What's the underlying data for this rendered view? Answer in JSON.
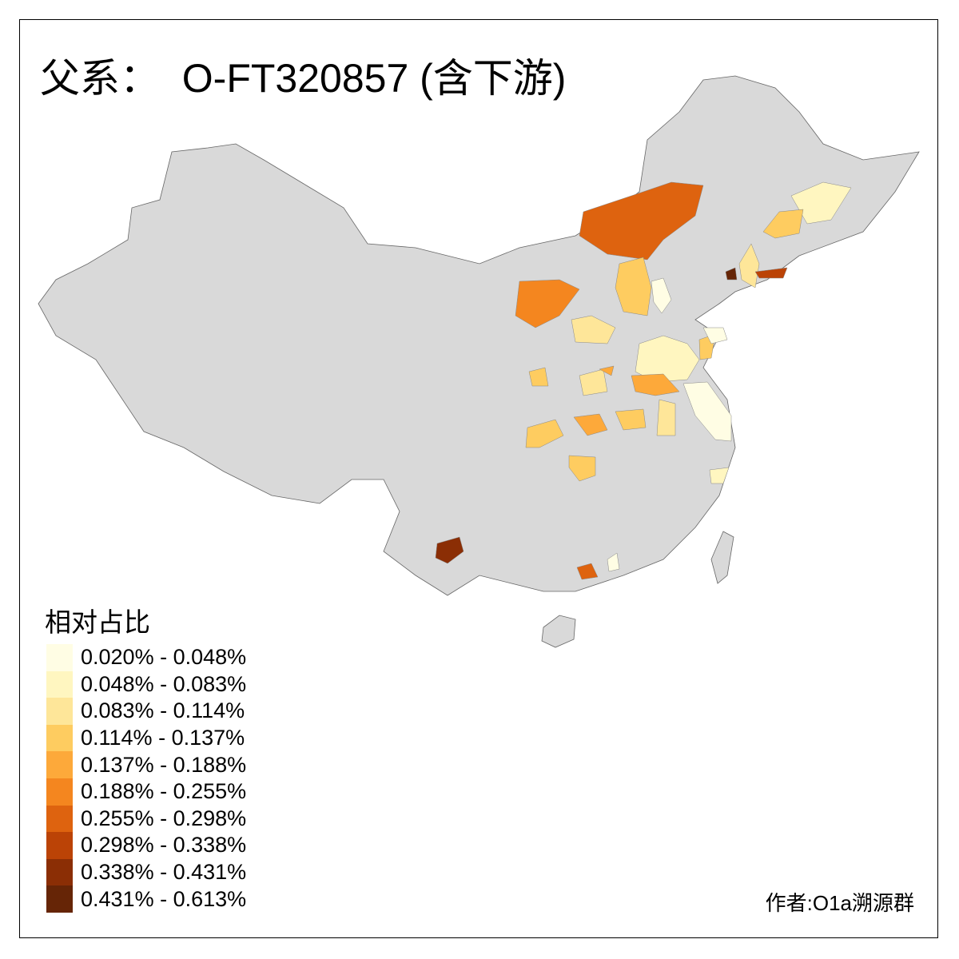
{
  "title": "父系：  O-FT320857 (含下游)",
  "legend": {
    "title": "相对占比",
    "items": [
      {
        "label": "0.020% - 0.048%",
        "color": "#FFFDE4"
      },
      {
        "label": "0.048% - 0.083%",
        "color": "#FFF6C0"
      },
      {
        "label": "0.083% - 0.114%",
        "color": "#FEE699"
      },
      {
        "label": "0.114% - 0.137%",
        "color": "#FECC60"
      },
      {
        "label": "0.137% - 0.188%",
        "color": "#FDA93A"
      },
      {
        "label": "0.188% - 0.255%",
        "color": "#F4861F"
      },
      {
        "label": "0.255% - 0.298%",
        "color": "#DE630F"
      },
      {
        "label": "0.298% - 0.338%",
        "color": "#BB4306"
      },
      {
        "label": "0.338% - 0.431%",
        "color": "#8B2E05"
      },
      {
        "label": "0.431% - 0.613%",
        "color": "#662506"
      }
    ]
  },
  "base_color": "#D9D9D9",
  "credit": "作者:O1a溯源群"
}
